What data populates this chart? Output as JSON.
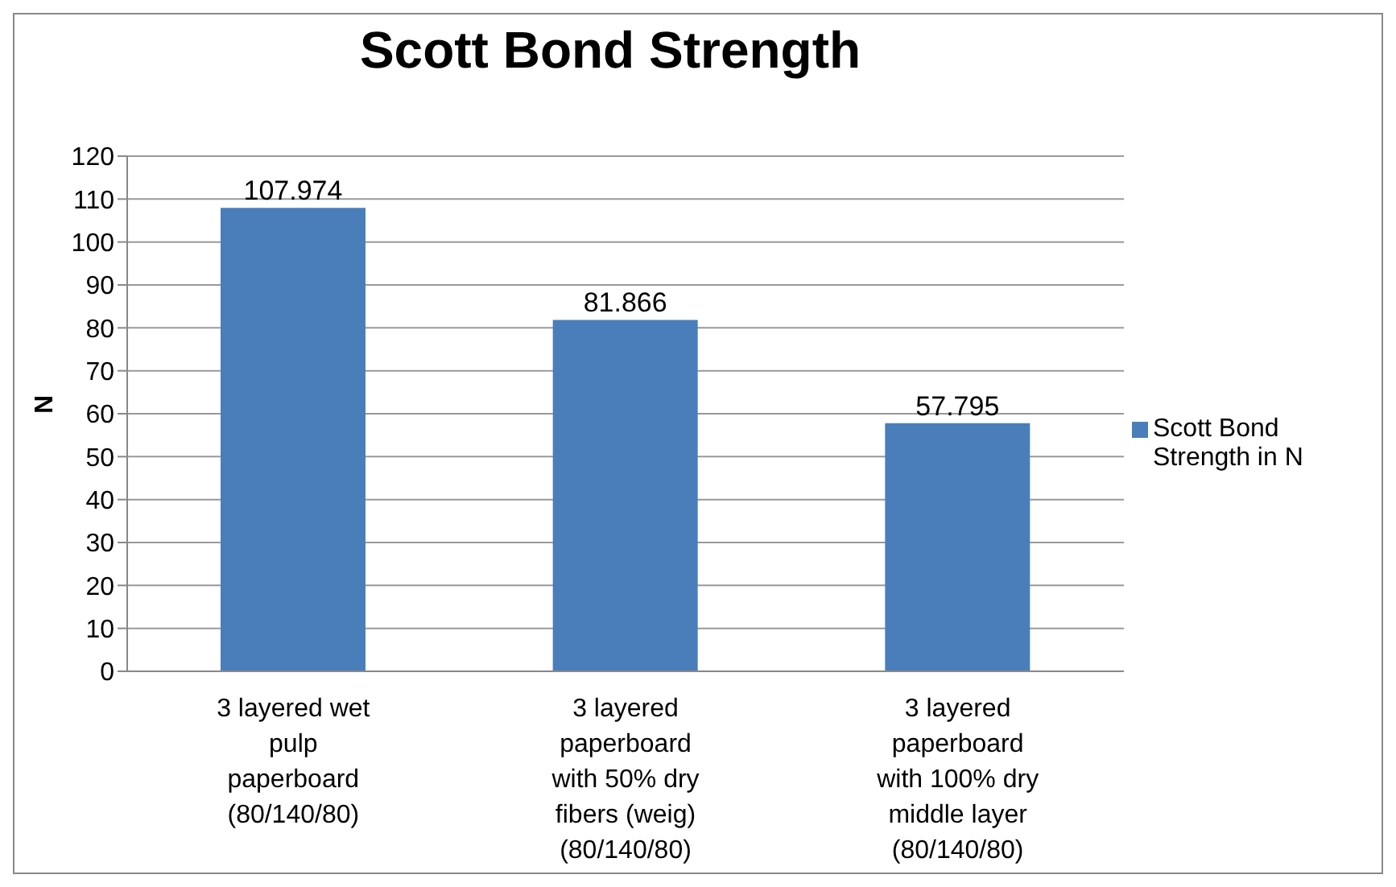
{
  "chart_data": {
    "type": "bar",
    "title": "Scott Bond Strength",
    "categories": [
      "3 layered wet pulp paperboard (80/140/80)",
      "3 layered paperboard with 50% dry fibers (weig) (80/140/80)",
      "3 layered paperboard with 100% dry middle layer (80/140/80)"
    ],
    "series": [
      {
        "name": "Scott Bond Strength in N",
        "color": "#4a7ebb",
        "values": [
          107.974,
          81.866,
          57.795
        ]
      }
    ],
    "ylabel": "N",
    "ylim": [
      0,
      120
    ],
    "yticks": [
      0,
      10,
      20,
      30,
      40,
      50,
      60,
      70,
      80,
      90,
      100,
      110,
      120
    ],
    "grid": "y",
    "legend": "right",
    "data_labels": true
  }
}
